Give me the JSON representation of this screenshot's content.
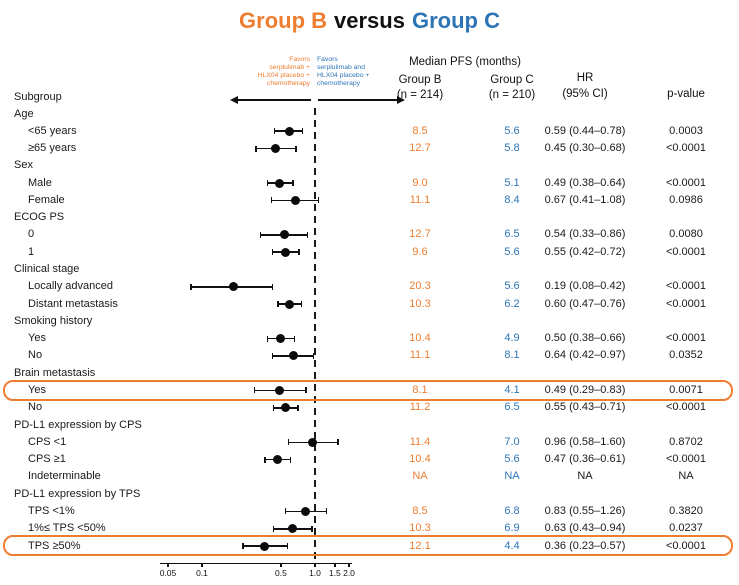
{
  "title": {
    "group_b": "Group B",
    "versus": "versus",
    "group_c": "Group C"
  },
  "colors": {
    "orange": "#ED7D31",
    "blue": "#2E75B6",
    "highlight_box": "#ED7D31",
    "text": "#1a1a1a"
  },
  "annotations": {
    "favors_left": {
      "lines": [
        "Favors",
        "serplulimab +",
        "HLX04 placebo +",
        "chemotherapy"
      ]
    },
    "favors_right": {
      "lines": [
        "Favors",
        "serplulimab and",
        "HLX04 placebo +",
        "chemotherapy"
      ]
    }
  },
  "columns": {
    "subgroup": "Subgroup",
    "median_pfs": "Median PFS (months)",
    "group_b": "Group B",
    "group_b_n": "(n = 214)",
    "group_c": "Group C",
    "group_c_n": "(n = 210)",
    "hr_line1": "HR",
    "hr_line2": "(95% CI)",
    "p_value": "p-value"
  },
  "chart_data": {
    "type": "forest",
    "x_scale": "log10",
    "ref_line": 1.0,
    "axis_ticks": [
      {
        "value": 0.05,
        "label": "0.05"
      },
      {
        "value": 0.1,
        "label": "0.1"
      },
      {
        "value": 0.5,
        "label": "0.5"
      },
      {
        "value": 1.0,
        "label": "1.0"
      },
      {
        "value": 1.5,
        "label": "1.5"
      },
      {
        "value": 2.0,
        "label": "2.0"
      }
    ],
    "rows": [
      {
        "label": "Age",
        "header": true
      },
      {
        "label": "<65 years",
        "b": "8.5",
        "c": "5.6",
        "hr": "0.59 (0.44–0.78)",
        "p": "0.0003",
        "est": 0.59,
        "lo": 0.44,
        "hi": 0.78
      },
      {
        "label": "≥65 years",
        "b": "12.7",
        "c": "5.8",
        "hr": "0.45 (0.30–0.68)",
        "p": "<0.0001",
        "est": 0.45,
        "lo": 0.3,
        "hi": 0.68
      },
      {
        "label": "Sex",
        "header": true
      },
      {
        "label": "Male",
        "b": "9.0",
        "c": "5.1",
        "hr": "0.49 (0.38–0.64)",
        "p": "<0.0001",
        "est": 0.49,
        "lo": 0.38,
        "hi": 0.64
      },
      {
        "label": "Female",
        "b": "11.1",
        "c": "8.4",
        "hr": "0.67 (0.41–1.08)",
        "p": "0.0986",
        "est": 0.67,
        "lo": 0.41,
        "hi": 1.08
      },
      {
        "label": "ECOG PS",
        "header": true
      },
      {
        "label": "0",
        "b": "12.7",
        "c": "6.5",
        "hr": "0.54 (0.33–0.86)",
        "p": "0.0080",
        "est": 0.54,
        "lo": 0.33,
        "hi": 0.86
      },
      {
        "label": "1",
        "b": "9.6",
        "c": "5.6",
        "hr": "0.55 (0.42–0.72)",
        "p": "<0.0001",
        "est": 0.55,
        "lo": 0.42,
        "hi": 0.72
      },
      {
        "label": "Clinical stage",
        "header": true
      },
      {
        "label": "Locally advanced",
        "b": "20.3",
        "c": "5.6",
        "hr": "0.19 (0.08–0.42)",
        "p": "<0.0001",
        "est": 0.19,
        "lo": 0.08,
        "hi": 0.42
      },
      {
        "label": "Distant metastasis",
        "b": "10.3",
        "c": "6.2",
        "hr": "0.60 (0.47–0.76)",
        "p": "<0.0001",
        "est": 0.6,
        "lo": 0.47,
        "hi": 0.76
      },
      {
        "label": "Smoking history",
        "header": true
      },
      {
        "label": "Yes",
        "b": "10.4",
        "c": "4.9",
        "hr": "0.50 (0.38–0.66)",
        "p": "<0.0001",
        "est": 0.5,
        "lo": 0.38,
        "hi": 0.66
      },
      {
        "label": "No",
        "b": "11.1",
        "c": "8.1",
        "hr": "0.64 (0.42–0.97)",
        "p": "0.0352",
        "est": 0.64,
        "lo": 0.42,
        "hi": 0.97
      },
      {
        "label": "Brain metastasis",
        "header": true
      },
      {
        "label": "Yes",
        "b": "8.1",
        "c": "4.1",
        "hr": "0.49 (0.29–0.83)",
        "p": "0.0071",
        "est": 0.49,
        "lo": 0.29,
        "hi": 0.83,
        "highlight": true
      },
      {
        "label": "No",
        "b": "11.2",
        "c": "6.5",
        "hr": "0.55 (0.43–0.71)",
        "p": "<0.0001",
        "est": 0.55,
        "lo": 0.43,
        "hi": 0.71
      },
      {
        "label": "PD-L1 expression by CPS",
        "header": true
      },
      {
        "label": "CPS <1",
        "b": "11.4",
        "c": "7.0",
        "hr": "0.96 (0.58–1.60)",
        "p": "0.8702",
        "est": 0.96,
        "lo": 0.58,
        "hi": 1.6
      },
      {
        "label": "CPS ≥1",
        "b": "10.4",
        "c": "5.6",
        "hr": "0.47 (0.36–0.61)",
        "p": "<0.0001",
        "est": 0.47,
        "lo": 0.36,
        "hi": 0.61
      },
      {
        "label": "Indeterminable",
        "b": "NA",
        "c": "NA",
        "hr": "NA",
        "p": "NA"
      },
      {
        "label": "PD-L1 expression by TPS",
        "header": true
      },
      {
        "label": "TPS <1%",
        "b": "8.5",
        "c": "6.8",
        "hr": "0.83 (0.55–1.26)",
        "p": "0.3820",
        "est": 0.83,
        "lo": 0.55,
        "hi": 1.26
      },
      {
        "label": "1%≤ TPS <50%",
        "b": "10.3",
        "c": "6.9",
        "hr": "0.63 (0.43–0.94)",
        "p": "0.0237",
        "est": 0.63,
        "lo": 0.43,
        "hi": 0.94
      },
      {
        "label": "TPS ≥50%",
        "b": "12.1",
        "c": "4.4",
        "hr": "0.36 (0.23–0.57)",
        "p": "<0.0001",
        "est": 0.36,
        "lo": 0.23,
        "hi": 0.57,
        "highlight": true
      }
    ]
  }
}
